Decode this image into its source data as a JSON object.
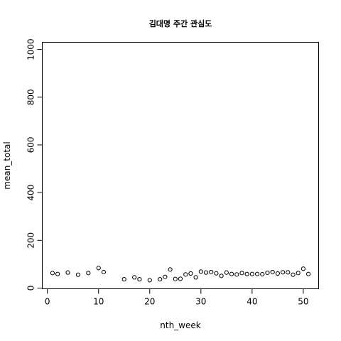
{
  "chart_data": {
    "type": "scatter",
    "title": "김대명 주간 관심도",
    "xlabel": "nth_week",
    "ylabel": "mean_total",
    "xlim": [
      -1,
      53
    ],
    "ylim": [
      -3,
      1030
    ],
    "x_ticks": [
      0,
      10,
      20,
      30,
      40,
      50
    ],
    "y_ticks": [
      0,
      200,
      400,
      600,
      800,
      1000
    ],
    "grid": false,
    "legend": "none",
    "marker": "open-circle",
    "points": [
      {
        "x": 1,
        "y": 63
      },
      {
        "x": 2,
        "y": 59
      },
      {
        "x": 4,
        "y": 65
      },
      {
        "x": 6,
        "y": 56
      },
      {
        "x": 8,
        "y": 63
      },
      {
        "x": 10,
        "y": 84
      },
      {
        "x": 11,
        "y": 67
      },
      {
        "x": 15,
        "y": 37
      },
      {
        "x": 17,
        "y": 45
      },
      {
        "x": 18,
        "y": 37
      },
      {
        "x": 20,
        "y": 33
      },
      {
        "x": 22,
        "y": 37
      },
      {
        "x": 23,
        "y": 47
      },
      {
        "x": 24,
        "y": 78
      },
      {
        "x": 25,
        "y": 38
      },
      {
        "x": 26,
        "y": 39
      },
      {
        "x": 27,
        "y": 57
      },
      {
        "x": 28,
        "y": 61
      },
      {
        "x": 29,
        "y": 45
      },
      {
        "x": 30,
        "y": 69
      },
      {
        "x": 31,
        "y": 65
      },
      {
        "x": 32,
        "y": 67
      },
      {
        "x": 33,
        "y": 62
      },
      {
        "x": 34,
        "y": 51
      },
      {
        "x": 35,
        "y": 65
      },
      {
        "x": 36,
        "y": 59
      },
      {
        "x": 37,
        "y": 57
      },
      {
        "x": 38,
        "y": 63
      },
      {
        "x": 39,
        "y": 59
      },
      {
        "x": 40,
        "y": 59
      },
      {
        "x": 41,
        "y": 59
      },
      {
        "x": 42,
        "y": 58
      },
      {
        "x": 43,
        "y": 64
      },
      {
        "x": 44,
        "y": 67
      },
      {
        "x": 45,
        "y": 61
      },
      {
        "x": 46,
        "y": 66
      },
      {
        "x": 47,
        "y": 66
      },
      {
        "x": 48,
        "y": 56
      },
      {
        "x": 49,
        "y": 63
      },
      {
        "x": 50,
        "y": 81
      },
      {
        "x": 51,
        "y": 59
      }
    ]
  }
}
